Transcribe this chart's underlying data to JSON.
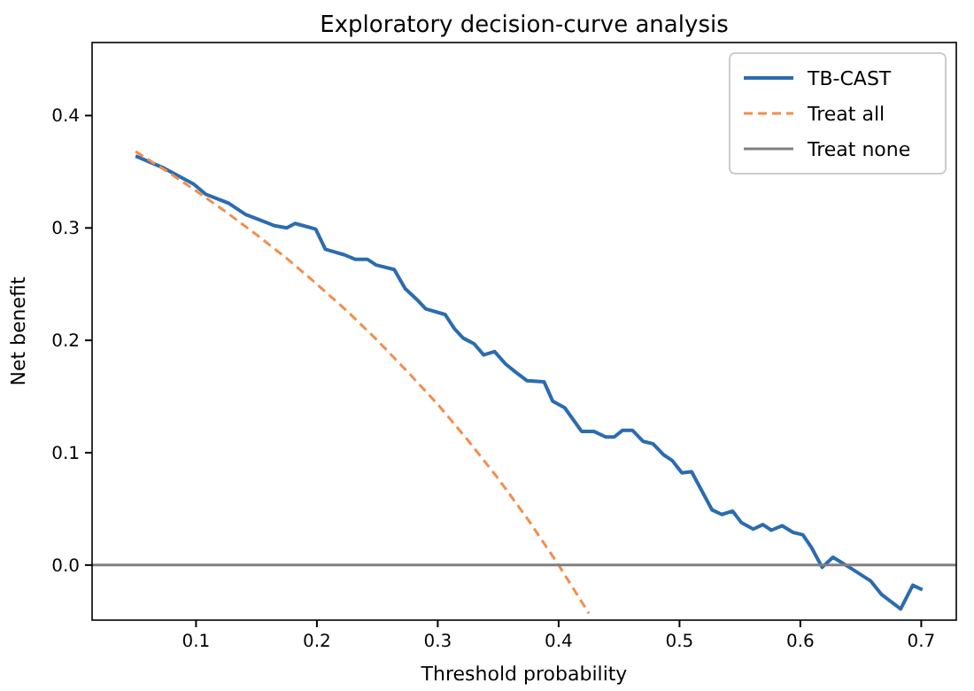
{
  "chart_data": {
    "type": "line",
    "title": "Exploratory decision-curve analysis",
    "xlabel": "Threshold probability",
    "ylabel": "Net benefit",
    "xlim": [
      0.014,
      0.729
    ],
    "ylim": [
      -0.049,
      0.465
    ],
    "xticks": [
      0.1,
      0.2,
      0.3,
      0.4,
      0.5,
      0.6,
      0.7
    ],
    "yticks": [
      {
        "value": 0,
        "label": "0.0"
      },
      0.1,
      0.2,
      0.3,
      0.4
    ],
    "grid": false,
    "legend": "top right",
    "marker": "none",
    "series": [
      {
        "name": "TB-CAST",
        "color": "#2b6cb0",
        "line_style": "solid",
        "x": [
          0.05,
          0.072,
          0.098,
          0.108,
          0.127,
          0.141,
          0.153,
          0.165,
          0.175,
          0.182,
          0.199,
          0.207,
          0.223,
          0.232,
          0.242,
          0.249,
          0.264,
          0.273,
          0.283,
          0.29,
          0.306,
          0.314,
          0.321,
          0.33,
          0.338,
          0.347,
          0.356,
          0.364,
          0.374,
          0.388,
          0.395,
          0.405,
          0.419,
          0.429,
          0.439,
          0.446,
          0.453,
          0.461,
          0.47,
          0.478,
          0.487,
          0.494,
          0.502,
          0.51,
          0.527,
          0.535,
          0.544,
          0.551,
          0.561,
          0.569,
          0.576,
          0.585,
          0.594,
          0.602,
          0.609,
          0.618,
          0.627,
          0.642,
          0.658,
          0.667,
          0.683,
          0.693,
          0.701
        ],
        "values": [
          0.364,
          0.354,
          0.339,
          0.33,
          0.322,
          0.312,
          0.307,
          0.302,
          0.3,
          0.304,
          0.299,
          0.281,
          0.276,
          0.272,
          0.272,
          0.267,
          0.263,
          0.246,
          0.236,
          0.228,
          0.223,
          0.21,
          0.202,
          0.197,
          0.187,
          0.19,
          0.179,
          0.172,
          0.164,
          0.163,
          0.146,
          0.14,
          0.119,
          0.119,
          0.114,
          0.114,
          0.12,
          0.12,
          0.11,
          0.108,
          0.098,
          0.093,
          0.082,
          0.083,
          0.049,
          0.045,
          0.048,
          0.038,
          0.032,
          0.036,
          0.031,
          0.035,
          0.029,
          0.027,
          0.016,
          -0.002,
          0.007,
          -0.003,
          -0.014,
          -0.026,
          -0.039,
          -0.018,
          -0.022
        ]
      },
      {
        "name": "Treat all",
        "color": "#f28e4c",
        "line_style": "dashed",
        "x": [
          0.05,
          0.075,
          0.1,
          0.125,
          0.15,
          0.175,
          0.2,
          0.225,
          0.25,
          0.275,
          0.3,
          0.325,
          0.35,
          0.375,
          0.4,
          0.425
        ],
        "values": [
          0.368,
          0.351,
          0.333,
          0.314,
          0.294,
          0.273,
          0.25,
          0.226,
          0.2,
          0.172,
          0.143,
          0.111,
          0.077,
          0.04,
          0.0,
          -0.043
        ]
      },
      {
        "name": "Treat none",
        "color": "#808080",
        "line_style": "solid",
        "x": [
          0.014,
          0.729
        ],
        "values": [
          0,
          0
        ]
      }
    ]
  }
}
